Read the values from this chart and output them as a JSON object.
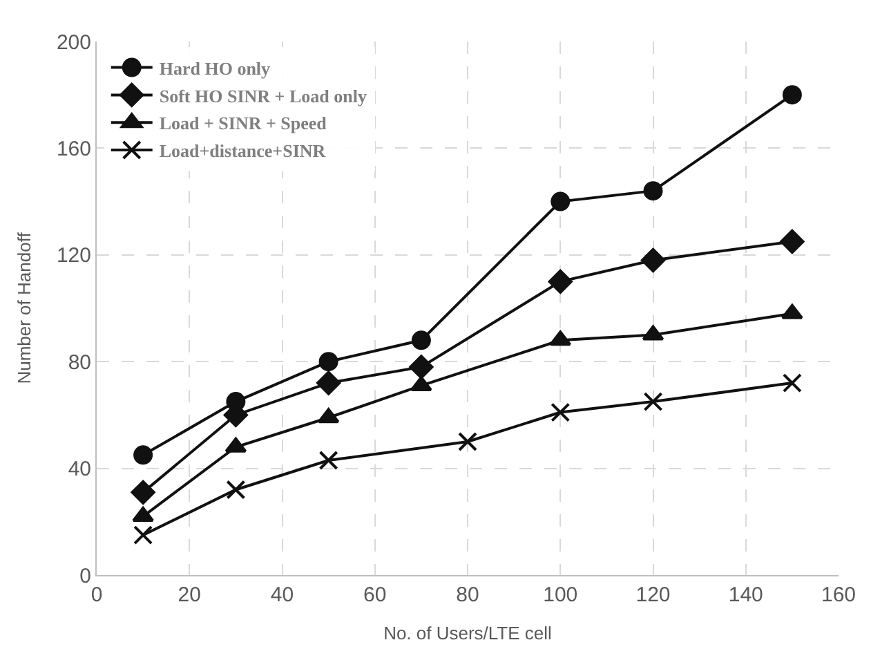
{
  "chart_data": {
    "type": "line",
    "xlabel": "No. of Users/LTE cell",
    "ylabel": "Number of Handoff",
    "xlim": [
      0,
      160
    ],
    "xticks": [
      0,
      20,
      40,
      60,
      80,
      100,
      120,
      140,
      160
    ],
    "ylim": [
      0,
      200
    ],
    "yticks": [
      0,
      40,
      80,
      120,
      160,
      200
    ],
    "grid": true,
    "legend": "top left",
    "series": [
      {
        "name": "Hard HO only",
        "color": "#111111",
        "marker": "circle",
        "x": [
          10,
          30,
          50,
          70,
          100,
          120,
          150
        ],
        "values": [
          45,
          65,
          80,
          88,
          140,
          144,
          180
        ]
      },
      {
        "name": "Soft HO SINR + Load only",
        "color": "#111111",
        "marker": "diamond",
        "x": [
          10,
          30,
          50,
          70,
          100,
          120,
          150
        ],
        "values": [
          31,
          60,
          72,
          78,
          110,
          118,
          125
        ]
      },
      {
        "name": "Load + SINR + Speed",
        "color": "#111111",
        "marker": "triangle",
        "x": [
          10,
          30,
          50,
          70,
          100,
          120,
          150
        ],
        "values": [
          22,
          48,
          59,
          71,
          88,
          90,
          98
        ]
      },
      {
        "name": "Load+distance+SINR",
        "color": "#111111",
        "marker": "cross",
        "x": [
          10,
          30,
          50,
          80,
          100,
          120,
          150
        ],
        "values": [
          15,
          32,
          43,
          50,
          61,
          65,
          72
        ]
      }
    ]
  }
}
